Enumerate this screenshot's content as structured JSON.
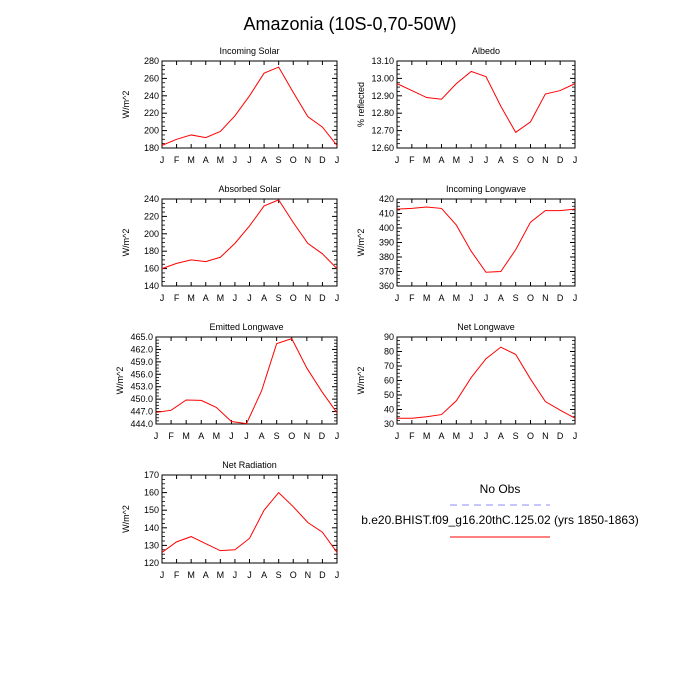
{
  "title": "Amazonia (10S-0,70-50W)",
  "months": [
    "J",
    "F",
    "M",
    "A",
    "M",
    "J",
    "J",
    "A",
    "S",
    "O",
    "N",
    "D",
    "J"
  ],
  "legend": {
    "obs_label": "No Obs",
    "model_label": "b.e20.BHIST.f09_g16.20thC.125.02 (yrs 1850-1863)",
    "obs_color": "#8c8cff",
    "model_color": "#ff0000"
  },
  "chart_data": [
    {
      "type": "line",
      "title": "Incoming Solar",
      "ylabel": "W/m^2",
      "ylim": [
        180,
        280
      ],
      "yticks": [
        180,
        200,
        220,
        240,
        260,
        280
      ],
      "ytick_labels": [
        "180",
        "200",
        "220",
        "240",
        "260",
        "280"
      ],
      "values": [
        183,
        190,
        195,
        192,
        199,
        217,
        240,
        266,
        273,
        244,
        216,
        204,
        183
      ]
    },
    {
      "type": "line",
      "title": "Albedo",
      "ylabel": "% reflected",
      "ylim": [
        12.6,
        13.1
      ],
      "yticks": [
        12.6,
        12.7,
        12.8,
        12.9,
        13.0,
        13.1
      ],
      "ytick_labels": [
        "12.60",
        "12.70",
        "12.80",
        "12.90",
        "13.00",
        "13.10"
      ],
      "values": [
        12.97,
        12.93,
        12.89,
        12.88,
        12.97,
        13.04,
        13.01,
        12.84,
        12.69,
        12.75,
        12.91,
        12.93,
        12.97
      ]
    },
    {
      "type": "line",
      "title": "Absorbed Solar",
      "ylabel": "W/m^2",
      "ylim": [
        140,
        240
      ],
      "yticks": [
        140,
        160,
        180,
        200,
        220,
        240
      ],
      "ytick_labels": [
        "140",
        "160",
        "180",
        "200",
        "220",
        "240"
      ],
      "values": [
        160,
        166,
        170,
        168,
        173,
        189,
        209,
        232,
        239,
        213,
        189,
        177,
        160
      ]
    },
    {
      "type": "line",
      "title": "Incoming Longwave",
      "ylabel": "W/m^2",
      "ylim": [
        360,
        420
      ],
      "yticks": [
        360,
        370,
        380,
        390,
        400,
        410,
        420
      ],
      "ytick_labels": [
        "360",
        "370",
        "380",
        "390",
        "400",
        "410",
        "420"
      ],
      "values": [
        413,
        413.5,
        414.5,
        413.5,
        402,
        384,
        369.5,
        370,
        385,
        404,
        412,
        412,
        413
      ]
    },
    {
      "type": "line",
      "title": "Emitted Longwave",
      "ylabel": "W/m^2",
      "ylim": [
        444,
        465
      ],
      "yticks": [
        444,
        447,
        450,
        453,
        456,
        459,
        462,
        465
      ],
      "ytick_labels": [
        "444.0",
        "447.0",
        "450.0",
        "453.0",
        "456.0",
        "459.0",
        "462.0",
        "465.0"
      ],
      "values": [
        446.8,
        447.3,
        449.8,
        449.7,
        448.0,
        444.6,
        444.1,
        452.0,
        463.4,
        464.6,
        457.5,
        451.8,
        446.7
      ]
    },
    {
      "type": "line",
      "title": "Net Longwave",
      "ylabel": "W/m^2",
      "ylim": [
        30,
        90
      ],
      "yticks": [
        30,
        40,
        50,
        60,
        70,
        80,
        90
      ],
      "ytick_labels": [
        "30",
        "40",
        "50",
        "60",
        "70",
        "80",
        "90"
      ],
      "values": [
        34,
        34,
        35,
        36.5,
        46,
        62,
        75,
        83,
        78,
        61,
        45.5,
        39.5,
        34
      ]
    },
    {
      "type": "line",
      "title": "Net Radiation",
      "ylabel": "W/m^2",
      "ylim": [
        120,
        170
      ],
      "yticks": [
        120,
        130,
        140,
        150,
        160,
        170
      ],
      "ytick_labels": [
        "120",
        "130",
        "140",
        "150",
        "160",
        "170"
      ],
      "values": [
        126,
        132,
        135,
        131,
        127,
        127.5,
        134,
        150,
        160,
        152,
        143,
        137.5,
        126
      ]
    }
  ]
}
